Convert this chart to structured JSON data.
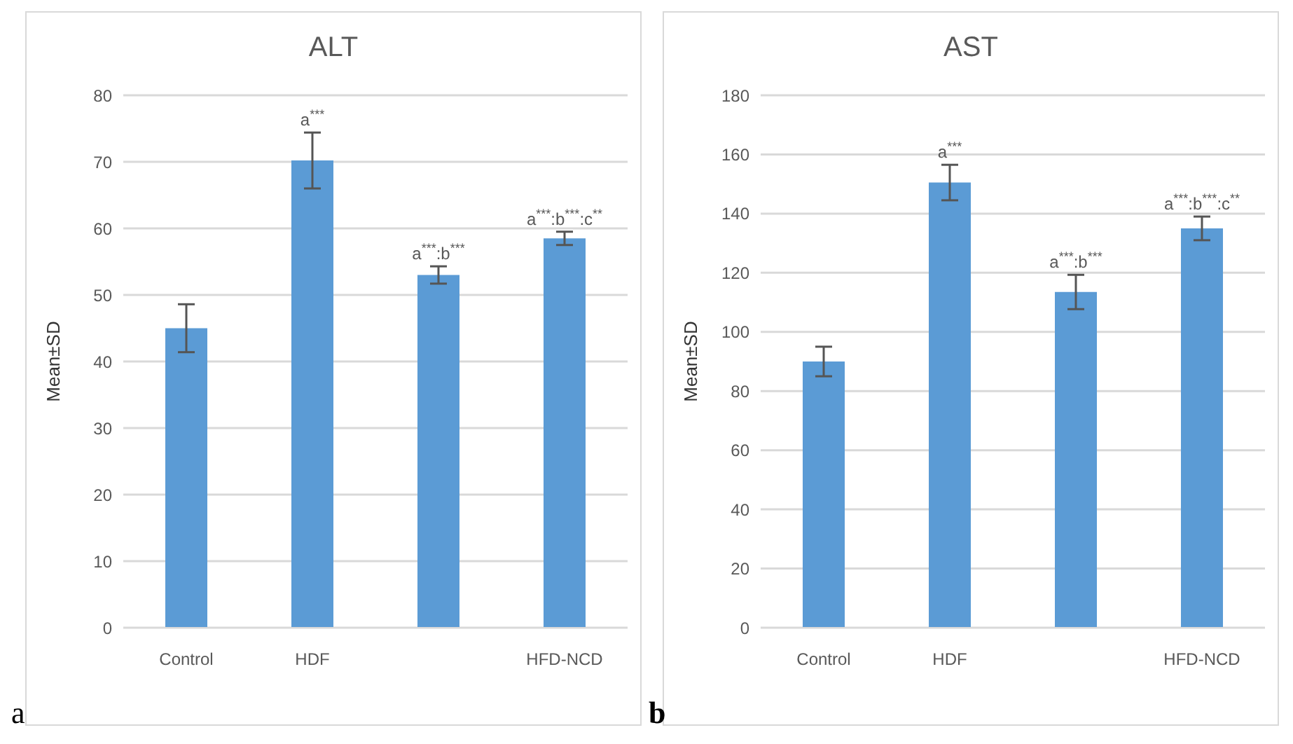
{
  "chart_data": [
    {
      "type": "bar",
      "title": "ALT",
      "ylabel": "Mean±SD",
      "categories": [
        "Control",
        "HDF",
        null,
        "HFD-NCD"
      ],
      "values": [
        45,
        70.2,
        53,
        58.5
      ],
      "errors": [
        3.6,
        4.2,
        1.3,
        1
      ],
      "color": "#5b9bd5",
      "ylim": [
        0,
        80
      ],
      "yticks": [
        0,
        10,
        20,
        30,
        40,
        50,
        60,
        70,
        80
      ],
      "grid": "y",
      "legend": false,
      "annotations": [
        {
          "text": "a$^{***}$",
          "x": "HDF",
          "y": 74.4
        },
        {
          "text": "a$^{***}$:b$^{***}$",
          "y": 54.3
        },
        {
          "text": "a$^{***}$:b$^{***}$:c$^{**}$",
          "x": "HFD-NCD",
          "y": 59.5
        },
        "a"
      ]
    },
    {
      "type": "bar",
      "title": "AST",
      "ylabel": "Mean±SD",
      "categories": [
        "Control",
        "HDF",
        null,
        "HFD-NCD"
      ],
      "values": [
        90,
        150.5,
        113.5,
        135
      ],
      "errors": [
        5,
        6,
        5.8,
        4
      ],
      "color": "#5b9bd5",
      "ylim": [
        0,
        180
      ],
      "yticks": [
        0,
        20,
        40,
        60,
        80,
        100,
        120,
        140,
        160,
        180
      ],
      "grid": "y",
      "legend": false,
      "annotations": [
        {
          "text": "a$^{***}$",
          "x": "HDF",
          "y": 156.5
        },
        {
          "text": "a$^{***}$:b$^{***}$",
          "y": 119.3
        },
        {
          "text": "a$^{***}$:b$^{***}$:c$^{**}$",
          "x": "HFD-NCD",
          "y": 139
        },
        "b"
      ]
    }
  ]
}
